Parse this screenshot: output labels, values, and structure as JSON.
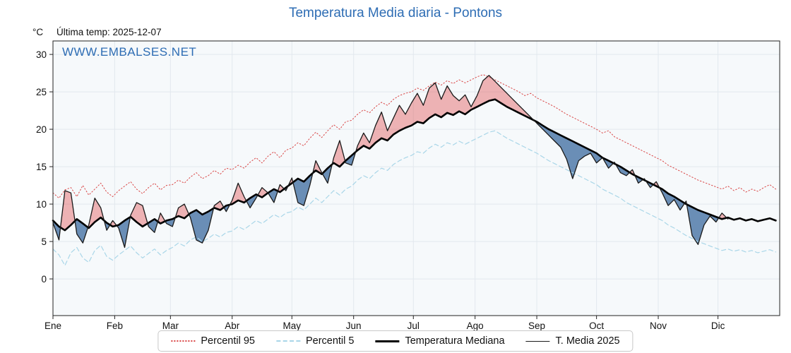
{
  "header": {
    "unit": "°C",
    "last_temp": "Última temp: 2025-12-07",
    "watermark": "WWW.EMBALSES.NET"
  },
  "chart_data": {
    "type": "line",
    "title": "Temperatura Media diaria - Pontons",
    "xlabel": "",
    "ylabel": "°C",
    "ylim": [
      -4.9,
      31.8
    ],
    "xlim_days": [
      0,
      365
    ],
    "x_start_day": 0,
    "x_step_days": 3,
    "grid": true,
    "plot_bg": "#f6f9fb",
    "grid_color": "#e2e8ee",
    "y_ticks": [
      0,
      5,
      10,
      15,
      20,
      25,
      30
    ],
    "months": [
      {
        "label": "Ene",
        "day": 0
      },
      {
        "label": "Feb",
        "day": 31
      },
      {
        "label": "Mar",
        "day": 59
      },
      {
        "label": "Abr",
        "day": 90
      },
      {
        "label": "May",
        "day": 120
      },
      {
        "label": "Jun",
        "day": 151
      },
      {
        "label": "Jul",
        "day": 181
      },
      {
        "label": "Ago",
        "day": 212
      },
      {
        "label": "Sep",
        "day": 243
      },
      {
        "label": "Oct",
        "day": 273
      },
      {
        "label": "Nov",
        "day": 304
      },
      {
        "label": "Dic",
        "day": 334
      }
    ],
    "fills": {
      "above_color": "rgba(224,80,80,0.42)",
      "below_color": "rgba(66,112,163,0.78)"
    },
    "legend_position": "bottom-center",
    "series": [
      {
        "name": "Percentil 95",
        "role": "p95",
        "color": "#d94545",
        "line": "dotted",
        "width": 1,
        "values": [
          11.5,
          10.8,
          11.9,
          12.2,
          11.0,
          12.5,
          11.2,
          12.0,
          12.8,
          11.6,
          11.0,
          11.8,
          12.4,
          13.0,
          12.0,
          11.4,
          12.2,
          12.8,
          11.9,
          12.5,
          12.6,
          13.2,
          12.8,
          13.6,
          14.2,
          13.4,
          13.8,
          14.5,
          14.0,
          14.8,
          14.6,
          15.2,
          14.8,
          15.6,
          16.2,
          15.5,
          16.4,
          17.0,
          16.2,
          17.2,
          17.5,
          18.2,
          17.8,
          18.8,
          19.6,
          18.9,
          19.8,
          20.6,
          20.0,
          21.0,
          21.2,
          22.0,
          22.6,
          22.2,
          23.0,
          23.6,
          23.2,
          24.0,
          24.5,
          24.8,
          25.0,
          25.5,
          25.2,
          25.8,
          26.3,
          25.9,
          26.5,
          26.1,
          26.6,
          26.2,
          26.6,
          27.0,
          27.3,
          27.0,
          26.6,
          26.2,
          25.8,
          25.4,
          25.0,
          24.5,
          24.8,
          24.2,
          23.8,
          23.4,
          23.0,
          22.5,
          22.0,
          21.6,
          21.2,
          20.8,
          20.4,
          20.0,
          19.5,
          19.8,
          19.0,
          18.6,
          18.2,
          17.8,
          17.4,
          17.0,
          16.6,
          16.2,
          15.8,
          15.2,
          14.8,
          14.4,
          14.0,
          13.6,
          13.2,
          12.9,
          12.6,
          12.3,
          12.0,
          12.4,
          11.8,
          12.2,
          11.6,
          12.0,
          11.7,
          12.2,
          12.6,
          12.0
        ]
      },
      {
        "name": "Percentil 5",
        "role": "p5",
        "color": "#a9d6e8",
        "line": "dashed",
        "width": 1.2,
        "values": [
          4.0,
          3.2,
          1.8,
          3.5,
          4.2,
          2.8,
          2.2,
          3.8,
          4.5,
          3.0,
          2.5,
          3.2,
          3.8,
          4.4,
          3.5,
          2.8,
          3.4,
          4.0,
          3.2,
          3.8,
          4.2,
          4.8,
          4.4,
          5.2,
          5.6,
          5.0,
          5.4,
          6.0,
          5.6,
          6.2,
          6.4,
          7.0,
          6.6,
          7.2,
          7.8,
          7.4,
          8.0,
          8.6,
          8.2,
          8.8,
          9.0,
          9.6,
          9.2,
          10.0,
          10.8,
          10.2,
          11.0,
          11.8,
          11.2,
          12.0,
          12.4,
          13.2,
          13.8,
          13.4,
          14.2,
          14.8,
          14.5,
          15.3,
          15.8,
          16.2,
          16.5,
          17.0,
          16.8,
          17.5,
          18.0,
          17.6,
          18.2,
          17.9,
          18.4,
          18.0,
          18.4,
          18.8,
          19.2,
          19.6,
          19.8,
          19.3,
          18.8,
          18.4,
          18.0,
          17.6,
          17.2,
          16.8,
          16.3,
          15.8,
          15.4,
          15.0,
          14.6,
          14.2,
          13.8,
          13.4,
          13.0,
          12.6,
          12.0,
          11.6,
          11.2,
          10.8,
          10.2,
          9.8,
          9.4,
          9.0,
          8.6,
          8.2,
          7.8,
          7.2,
          6.8,
          6.3,
          5.8,
          5.4,
          5.0,
          4.7,
          4.4,
          4.1,
          3.8,
          4.0,
          3.7,
          3.9,
          3.6,
          3.8,
          3.5,
          3.7,
          3.9,
          3.6
        ]
      },
      {
        "name": "Temperatura Mediana",
        "role": "median",
        "color": "#000000",
        "line": "solid",
        "width": 2.6,
        "values": [
          7.8,
          7.0,
          6.5,
          7.2,
          8.0,
          7.4,
          6.8,
          7.6,
          8.2,
          7.5,
          7.0,
          7.2,
          7.8,
          8.3,
          7.6,
          7.0,
          7.5,
          8.0,
          7.4,
          7.8,
          8.0,
          8.4,
          8.1,
          8.8,
          9.2,
          8.6,
          9.0,
          9.5,
          9.2,
          9.8,
          10.0,
          10.5,
          10.2,
          10.8,
          11.3,
          10.9,
          11.5,
          12.0,
          11.6,
          12.2,
          12.8,
          13.4,
          13.0,
          13.8,
          14.5,
          14.0,
          14.8,
          15.5,
          15.0,
          15.8,
          16.5,
          17.2,
          17.8,
          17.4,
          18.2,
          18.8,
          18.5,
          19.3,
          19.8,
          20.2,
          20.5,
          21.0,
          20.8,
          21.5,
          22.0,
          21.6,
          22.2,
          21.9,
          22.4,
          22.0,
          22.6,
          23.0,
          23.4,
          23.8,
          24.0,
          23.5,
          23.0,
          22.6,
          22.2,
          21.8,
          21.4,
          21.0,
          20.5,
          20.0,
          19.6,
          19.2,
          18.8,
          18.4,
          18.0,
          17.6,
          17.2,
          16.8,
          16.2,
          15.8,
          15.4,
          15.0,
          14.5,
          14.0,
          13.6,
          13.2,
          12.8,
          12.4,
          12.0,
          11.4,
          11.0,
          10.5,
          10.0,
          9.6,
          9.2,
          8.9,
          8.6,
          8.3,
          8.0,
          8.2,
          7.9,
          8.1,
          7.8,
          8.0,
          7.7,
          7.9,
          8.1,
          7.8
        ]
      },
      {
        "name": "T. Media 2025",
        "role": "t2025",
        "color": "#1a1a1a",
        "line": "solid",
        "width": 1.3,
        "values": [
          7.5,
          5.2,
          11.8,
          11.5,
          6.0,
          4.8,
          7.2,
          10.8,
          9.5,
          6.5,
          7.8,
          6.8,
          4.2,
          8.5,
          10.2,
          9.8,
          7.0,
          6.2,
          8.8,
          7.4,
          7.0,
          9.5,
          10.0,
          8.2,
          5.2,
          4.8,
          6.5,
          9.8,
          10.4,
          9.0,
          10.5,
          12.8,
          11.0,
          9.5,
          10.8,
          12.2,
          11.5,
          10.2,
          12.6,
          11.8,
          13.5,
          10.2,
          9.8,
          12.5,
          15.8,
          14.2,
          12.8,
          16.2,
          18.5,
          15.5,
          15.2,
          17.8,
          19.5,
          18.2,
          20.5,
          22.3,
          19.8,
          21.5,
          23.2,
          22.0,
          23.5,
          24.8,
          23.2,
          25.5,
          26.2,
          24.0,
          25.8,
          24.5,
          23.8,
          24.6,
          23.0,
          24.5,
          26.5,
          27.2,
          26.4,
          25.6,
          24.8,
          24.0,
          23.2,
          22.4,
          21.6,
          20.8,
          20.0,
          19.2,
          18.4,
          17.6,
          16.0,
          13.4,
          15.8,
          16.4,
          16.8,
          15.5,
          16.2,
          14.8,
          15.6,
          14.2,
          13.8,
          14.6,
          12.8,
          13.4,
          12.2,
          13.0,
          11.5,
          9.8,
          10.6,
          9.2,
          10.4,
          5.8,
          4.6,
          7.2,
          8.4,
          7.6,
          8.8,
          8.0
        ]
      }
    ]
  }
}
